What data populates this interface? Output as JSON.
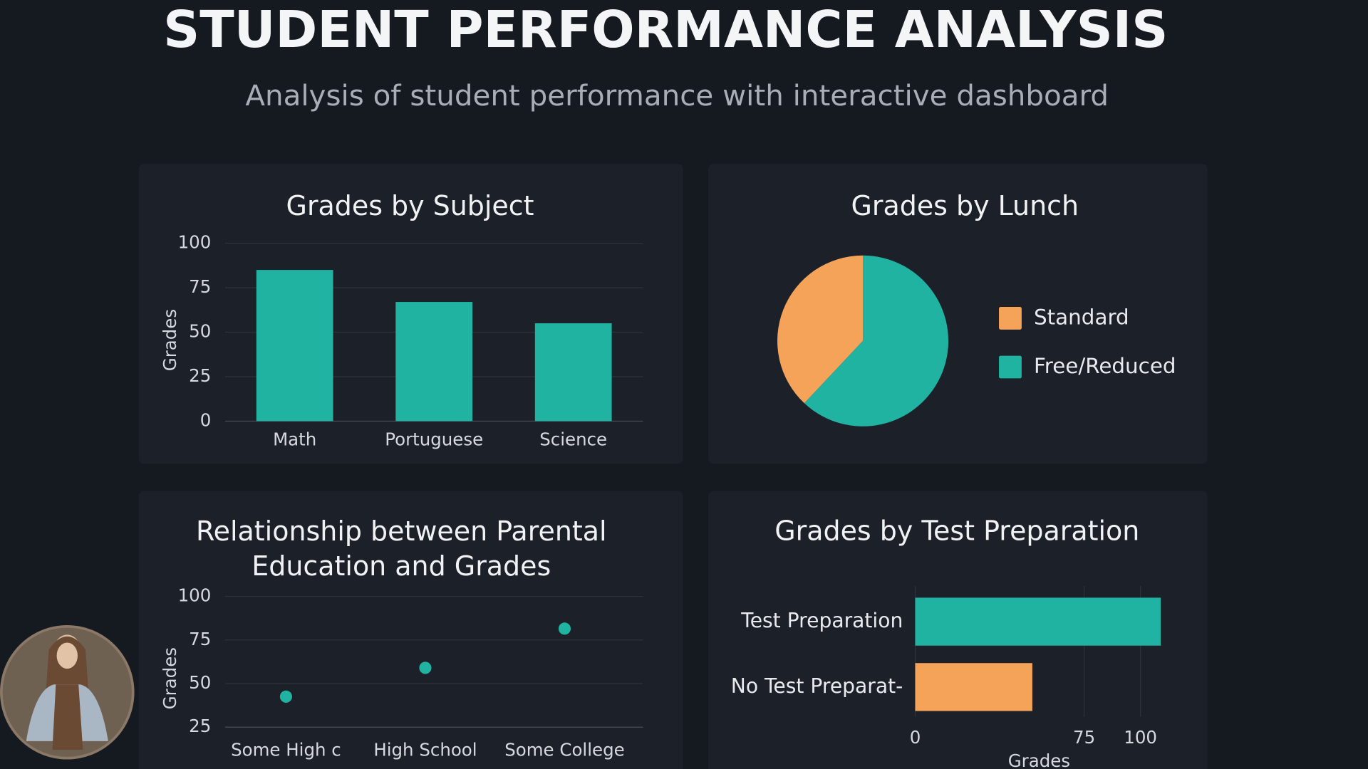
{
  "header": {
    "title": "STUDENT PERFORMANCE ANALYSIS",
    "subtitle": "Analysis of student performance with interactive dashboard"
  },
  "chart_data": [
    {
      "type": "bar",
      "title": "Grades by Subject",
      "y_label": "Grades",
      "categories": [
        "Math",
        "Portuguese",
        "Science"
      ],
      "values": [
        85,
        67,
        55
      ],
      "color": "#21b3a2",
      "ylim": [
        0,
        100
      ],
      "yticks": [
        0,
        25,
        50,
        75,
        100
      ],
      "grid": true
    },
    {
      "type": "pie",
      "title": "Grades by Lunch",
      "categories": [
        "Standard",
        "Free/Reduced"
      ],
      "values": [
        38,
        62
      ],
      "colors": [
        "#f6a35a",
        "#21b3a2"
      ],
      "legend": "right"
    },
    {
      "type": "scatter",
      "title": "Relationship between Parental Education and Grades",
      "y_label": "Grades",
      "categories": [
        "Some High c",
        "High School",
        "Some College"
      ],
      "values": [
        42.5,
        59,
        81.5
      ],
      "color": "#21b3a2",
      "ylim": [
        25,
        100
      ],
      "yticks": [
        25,
        50,
        75,
        100
      ],
      "grid": true
    },
    {
      "type": "hbar",
      "title": "Grades by Test Preparation",
      "x_label": "Grades",
      "categories": [
        "Test Preparation",
        "No Test Preparat-"
      ],
      "values": [
        109,
        52
      ],
      "colors": [
        "#21b3a2",
        "#f6a35a"
      ],
      "xlim": [
        0,
        110
      ],
      "xticks": [
        0,
        75,
        100
      ],
      "grid": true
    }
  ]
}
